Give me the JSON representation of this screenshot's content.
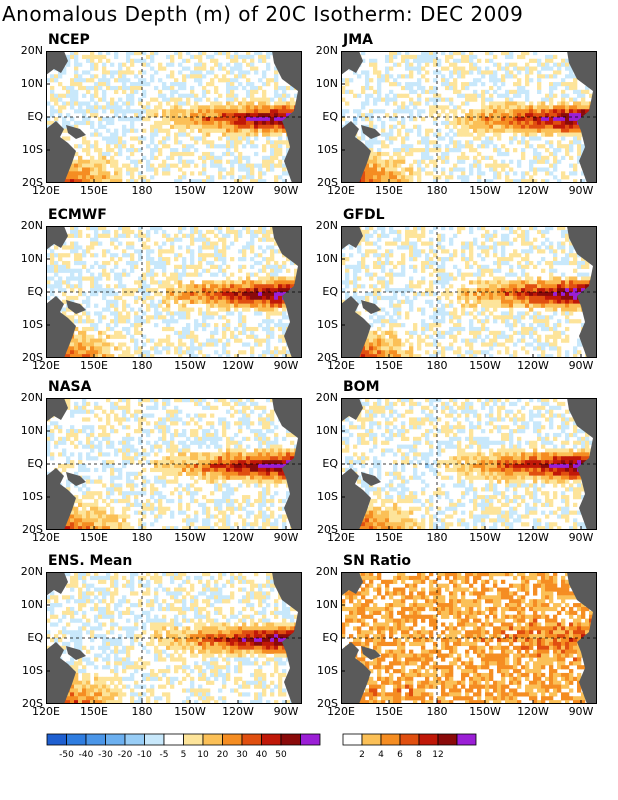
{
  "title": "Anomalous Depth (m) of 20C Isotherm: DEC 2009",
  "lat_labels": [
    "20N",
    "10N",
    "EQ",
    "10S",
    "20S"
  ],
  "lon_labels": [
    "120E",
    "150E",
    "180",
    "150W",
    "120W",
    "90W"
  ],
  "panels": [
    {
      "name": "NCEP"
    },
    {
      "name": "JMA"
    },
    {
      "name": "ECMWF"
    },
    {
      "name": "GFDL"
    },
    {
      "name": "NASA"
    },
    {
      "name": "BOM"
    },
    {
      "name": "ENS. Mean"
    },
    {
      "name": "SN Ratio"
    }
  ],
  "legend_depth": {
    "labels": [
      "-50",
      "-40",
      "-30",
      "-20",
      "-10",
      "-5",
      "5",
      "10",
      "20",
      "30",
      "40",
      "50"
    ],
    "colors": [
      "#1e5fd0",
      "#2f7de0",
      "#4b96e8",
      "#6cb0f0",
      "#98cdf6",
      "#c8e8fb",
      "#ffffff",
      "#fde49a",
      "#fbc057",
      "#f58d22",
      "#e04f10",
      "#c01808",
      "#8a0a0a",
      "#9b1fd6"
    ]
  },
  "legend_snr": {
    "labels": [
      "2",
      "4",
      "6",
      "8",
      "12"
    ],
    "colors": [
      "#ffffff",
      "#fbc057",
      "#f58d22",
      "#e04f10",
      "#c01808",
      "#8a0a0a",
      "#9b1fd6"
    ]
  },
  "colors": {
    "land": "#5a5a5a",
    "gridline": "#000000"
  }
}
